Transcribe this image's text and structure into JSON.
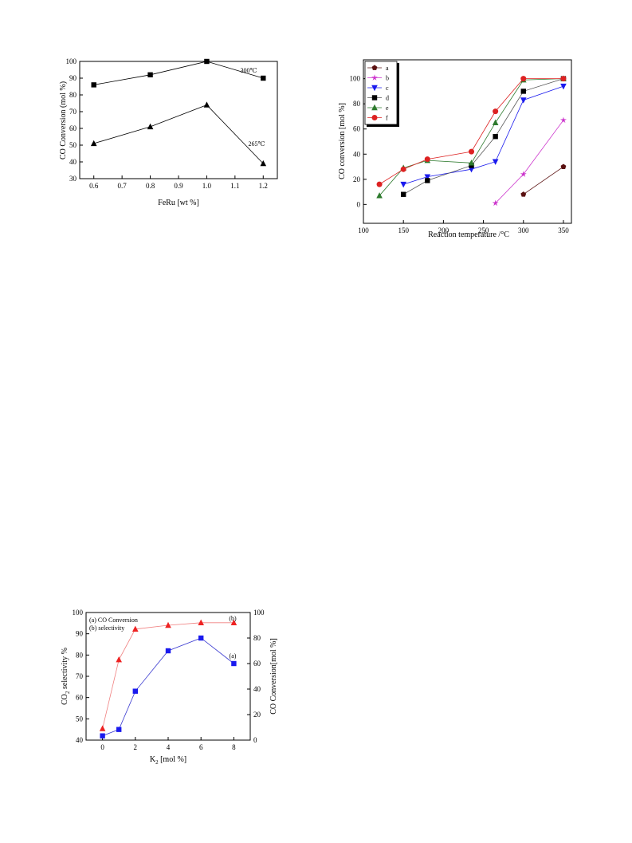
{
  "charts": [
    {
      "type": "line",
      "title": "",
      "xlabel": "FeRu [wt %]",
      "ylabel": "CO Conversion (mol %)",
      "xlim": [
        0.55,
        1.25
      ],
      "ylim": [
        30,
        100
      ],
      "xticks": [
        "0.6",
        "0.7",
        "0.8",
        "0.9",
        "1.0",
        "1.1",
        "1.2"
      ],
      "yticks": [
        "30",
        "40",
        "50",
        "60",
        "70",
        "80",
        "90",
        "100"
      ],
      "series": [
        {
          "name": "300℃",
          "marker": "square",
          "color": "#000000",
          "x": [
            0.6,
            0.8,
            1.0,
            1.2
          ],
          "y": [
            86,
            92,
            100,
            90
          ]
        },
        {
          "name": "265℃",
          "marker": "triangle",
          "color": "#000000",
          "x": [
            0.6,
            0.8,
            1.0,
            1.2
          ],
          "y": [
            51,
            61,
            74,
            39
          ]
        }
      ]
    },
    {
      "type": "line",
      "title": "",
      "xlabel": "Reaction temperature /°C",
      "ylabel": "CO conversion [mol %]",
      "xlim": [
        100,
        360
      ],
      "ylim": [
        -15,
        115
      ],
      "xticks": [
        "100",
        "150",
        "200",
        "250",
        "300",
        "350"
      ],
      "yticks": [
        "0",
        "20",
        "40",
        "60",
        "80",
        "100"
      ],
      "legend_position": "top-left",
      "series": [
        {
          "name": "a",
          "marker": "pentagon",
          "color": "#5a1010",
          "x": [
            300,
            350
          ],
          "y": [
            8,
            30
          ]
        },
        {
          "name": "b",
          "marker": "star",
          "color": "#cc33cc",
          "x": [
            265,
            300,
            350
          ],
          "y": [
            1,
            24,
            67
          ]
        },
        {
          "name": "c",
          "marker": "triangle-down",
          "color": "#1a1aee",
          "x": [
            150,
            180,
            235,
            265,
            300,
            350
          ],
          "y": [
            16,
            22,
            28,
            34,
            83,
            94
          ]
        },
        {
          "name": "d",
          "marker": "square",
          "color": "#000000",
          "x": [
            150,
            180,
            235,
            265,
            300,
            350
          ],
          "y": [
            8,
            19,
            31,
            54,
            90,
            100
          ]
        },
        {
          "name": "e",
          "marker": "triangle",
          "color": "#2d7a2d",
          "x": [
            120,
            150,
            180,
            235,
            265,
            300,
            350
          ],
          "y": [
            7,
            29,
            35,
            33,
            65,
            99,
            100
          ]
        },
        {
          "name": "f",
          "marker": "circle",
          "color": "#dd2222",
          "x": [
            120,
            150,
            180,
            235,
            265,
            300,
            350
          ],
          "y": [
            16,
            28,
            36,
            42,
            74,
            100,
            100
          ]
        }
      ]
    },
    {
      "type": "line",
      "title": "",
      "xlabel": "K2O [mol %]",
      "ylabel": "CO2 selectivity %",
      "ylabel_right": "CO Conversion[mol %]",
      "xlim": [
        -1,
        9
      ],
      "ylim": [
        40,
        100
      ],
      "ylim_right": [
        0,
        100
      ],
      "xticks": [
        "0",
        "2",
        "4",
        "6",
        "8"
      ],
      "yticks": [
        "40",
        "50",
        "60",
        "70",
        "80",
        "90",
        "100"
      ],
      "yticks_right": [
        "0",
        "20",
        "40",
        "60",
        "80",
        "100"
      ],
      "legend_lines": [
        "(a) CO Conversion",
        "(b) selectivity"
      ],
      "annotations": [
        "(a)",
        "(b)"
      ],
      "colors": {
        "left_axis": "#1a1aee",
        "right_axis": "#ee2222"
      },
      "series": [
        {
          "name": "(a)",
          "axis": "left",
          "marker": "square",
          "color": "#1a1aee",
          "x": [
            0,
            1,
            2,
            4,
            6,
            8
          ],
          "y": [
            42,
            45,
            63,
            82,
            88,
            76
          ]
        },
        {
          "name": "(b)",
          "axis": "right",
          "marker": "triangle",
          "color": "#ee2222",
          "x": [
            0,
            1,
            2,
            4,
            6,
            8
          ],
          "y": [
            9,
            63,
            87,
            90,
            92,
            92
          ]
        }
      ]
    }
  ]
}
